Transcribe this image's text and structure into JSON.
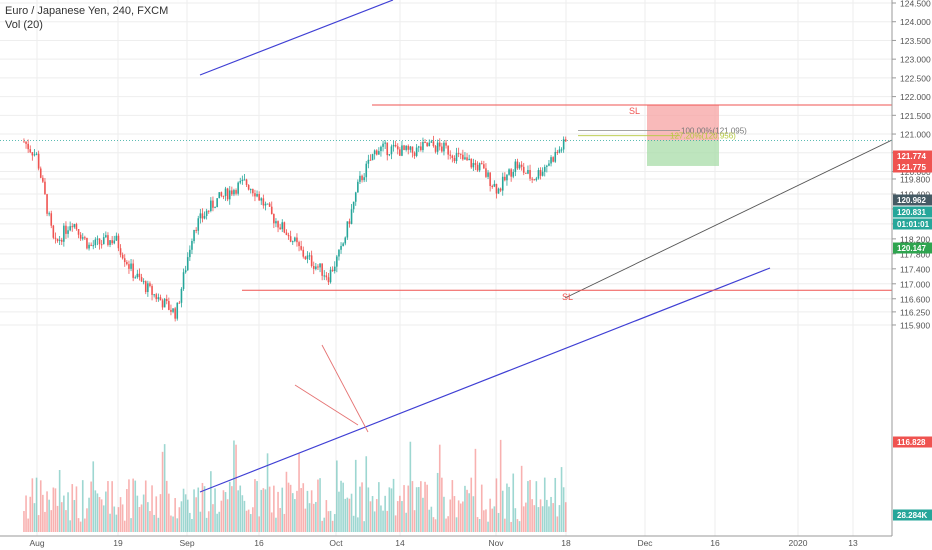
{
  "header": {
    "title": "Euro / Japanese Yen, 240, FXCM",
    "volume_label": "Vol (20)"
  },
  "colors": {
    "up": "#26a69a",
    "down": "#ef5350",
    "trendline": "#3f3fd4",
    "sl_line": "#ef5350",
    "current_price": "#455a64",
    "grid": "#eeeeee"
  },
  "chart_data": {
    "type": "candlestick",
    "symbol": "EURJPY",
    "interval": "240",
    "ylim": [
      115.75,
      124.6
    ],
    "y_ticks": [
      "124.500",
      "124.000",
      "123.500",
      "123.000",
      "122.500",
      "122.000",
      "121.500",
      "121.000",
      "120.500",
      "120.000",
      "119.800",
      "119.400",
      "119.000",
      "118.600",
      "118.200",
      "117.800",
      "117.400",
      "117.000",
      "116.600",
      "116.250",
      "115.900"
    ],
    "x_ticks": [
      "Aug",
      "19",
      "Sep",
      "16",
      "Oct",
      "14",
      "Nov",
      "18",
      "Dec",
      "16",
      "2020",
      "13"
    ],
    "price_path": [
      {
        "date": "Jul 29",
        "price": 120.8
      },
      {
        "date": "Aug 1",
        "price": 120.4
      },
      {
        "date": "Aug 5",
        "price": 118.0
      },
      {
        "date": "Aug 9",
        "price": 118.7
      },
      {
        "date": "Aug 13",
        "price": 118.0
      },
      {
        "date": "Aug 19",
        "price": 118.2
      },
      {
        "date": "Aug 23",
        "price": 117.3
      },
      {
        "date": "Aug 27",
        "price": 116.8
      },
      {
        "date": "Sep 2",
        "price": 116.2
      },
      {
        "date": "Sep 6",
        "price": 118.5
      },
      {
        "date": "Sep 11",
        "price": 119.2
      },
      {
        "date": "Sep 16",
        "price": 119.6
      },
      {
        "date": "Sep 18",
        "price": 119.7
      },
      {
        "date": "Sep 20",
        "price": 119.5
      },
      {
        "date": "Sep 24",
        "price": 118.8
      },
      {
        "date": "Sep 28",
        "price": 118.3
      },
      {
        "date": "Oct 1",
        "price": 117.8
      },
      {
        "date": "Oct 4",
        "price": 117.5
      },
      {
        "date": "Oct 7",
        "price": 117.2
      },
      {
        "date": "Oct 10",
        "price": 117.9
      },
      {
        "date": "Oct 14",
        "price": 119.7
      },
      {
        "date": "Oct 18",
        "price": 120.6
      },
      {
        "date": "Oct 22",
        "price": 120.6
      },
      {
        "date": "Oct 26",
        "price": 120.5
      },
      {
        "date": "Oct 30",
        "price": 120.7
      },
      {
        "date": "Nov 3",
        "price": 120.6
      },
      {
        "date": "Nov 7",
        "price": 120.3
      },
      {
        "date": "Nov 11",
        "price": 120.1
      },
      {
        "date": "Nov 15",
        "price": 119.5
      },
      {
        "date": "Nov 19",
        "price": 120.2
      },
      {
        "date": "Nov 23",
        "price": 119.8
      },
      {
        "date": "Nov 27",
        "price": 120.3
      },
      {
        "date": "Dec 1",
        "price": 120.83
      }
    ],
    "price_labels": [
      {
        "text": "121.774",
        "role": "stop-loss-upper"
      },
      {
        "text": "121.775",
        "role": "sl-zone-top"
      },
      {
        "text": "120.962",
        "role": "last-close"
      },
      {
        "text": "120.831",
        "role": "current-price"
      },
      {
        "text": "01:01:01",
        "role": "bar-countdown"
      },
      {
        "text": "120.147",
        "role": "take-profit"
      },
      {
        "text": "116.828",
        "role": "stop-loss-lower"
      },
      {
        "text": "28.284K",
        "role": "volume"
      }
    ],
    "annotations": {
      "sl_upper": "SL",
      "sl_lower": "SL",
      "fib_100": "100.00%(121.095)",
      "fib_127": "127.20%(120.956)"
    },
    "horizontal_levels": [
      121.774,
      116.828
    ],
    "legend": "none",
    "grid": true
  }
}
